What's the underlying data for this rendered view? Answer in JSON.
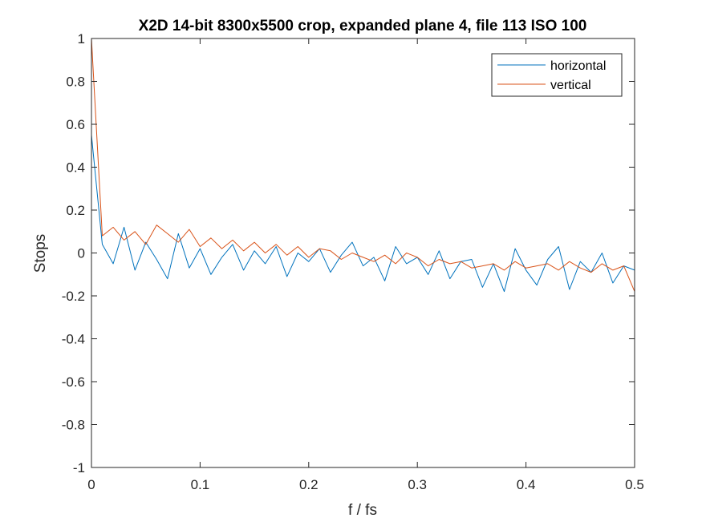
{
  "chart_data": {
    "type": "line",
    "title": "X2D 14-bit 8300x5500 crop, expanded plane 4, file 113 ISO 100",
    "xlabel": "f / fs",
    "ylabel": "Stops",
    "xlim": [
      0,
      0.5
    ],
    "ylim": [
      -1,
      1
    ],
    "x_ticks": [
      0,
      0.1,
      0.2,
      0.3,
      0.4,
      0.5
    ],
    "y_ticks": [
      -1,
      -0.8,
      -0.6,
      -0.4,
      -0.2,
      0,
      0.2,
      0.4,
      0.6,
      0.8,
      1
    ],
    "x_tick_labels": [
      "0",
      "0.1",
      "0.2",
      "0.3",
      "0.4",
      "0.5"
    ],
    "y_tick_labels": [
      "-1",
      "-0.8",
      "-0.6",
      "-0.4",
      "-0.2",
      "0",
      "0.2",
      "0.4",
      "0.6",
      "0.8",
      "1"
    ],
    "grid": false,
    "legend_position": "top-right",
    "series": [
      {
        "name": "horizontal",
        "color": "#0072BD",
        "x": [
          0,
          0.01,
          0.02,
          0.03,
          0.04,
          0.05,
          0.06,
          0.07,
          0.08,
          0.09,
          0.1,
          0.11,
          0.12,
          0.13,
          0.14,
          0.15,
          0.16,
          0.17,
          0.18,
          0.19,
          0.2,
          0.21,
          0.22,
          0.23,
          0.24,
          0.25,
          0.26,
          0.27,
          0.28,
          0.29,
          0.3,
          0.31,
          0.32,
          0.33,
          0.34,
          0.35,
          0.36,
          0.37,
          0.38,
          0.39,
          0.4,
          0.41,
          0.42,
          0.43,
          0.44,
          0.45,
          0.46,
          0.47,
          0.48,
          0.49,
          0.5
        ],
        "y": [
          0.55,
          0.04,
          -0.05,
          0.12,
          -0.08,
          0.05,
          -0.03,
          -0.12,
          0.09,
          -0.07,
          0.02,
          -0.1,
          -0.02,
          0.04,
          -0.08,
          0.01,
          -0.05,
          0.03,
          -0.11,
          0.0,
          -0.04,
          0.02,
          -0.09,
          -0.01,
          0.05,
          -0.06,
          -0.02,
          -0.13,
          0.03,
          -0.05,
          -0.02,
          -0.1,
          0.01,
          -0.12,
          -0.04,
          -0.03,
          -0.16,
          -0.05,
          -0.18,
          0.02,
          -0.08,
          -0.15,
          -0.03,
          0.03,
          -0.17,
          -0.04,
          -0.09,
          0.0,
          -0.14,
          -0.06,
          -0.08
        ]
      },
      {
        "name": "vertical",
        "color": "#D95319",
        "x": [
          0,
          0.01,
          0.02,
          0.03,
          0.04,
          0.05,
          0.06,
          0.07,
          0.08,
          0.09,
          0.1,
          0.11,
          0.12,
          0.13,
          0.14,
          0.15,
          0.16,
          0.17,
          0.18,
          0.19,
          0.2,
          0.21,
          0.22,
          0.23,
          0.24,
          0.25,
          0.26,
          0.27,
          0.28,
          0.29,
          0.3,
          0.31,
          0.32,
          0.33,
          0.34,
          0.35,
          0.36,
          0.37,
          0.38,
          0.39,
          0.4,
          0.41,
          0.42,
          0.43,
          0.44,
          0.45,
          0.46,
          0.47,
          0.48,
          0.49,
          0.5
        ],
        "y": [
          1.0,
          0.08,
          0.12,
          0.06,
          0.1,
          0.04,
          0.13,
          0.09,
          0.05,
          0.11,
          0.03,
          0.07,
          0.02,
          0.06,
          0.01,
          0.05,
          0.0,
          0.04,
          -0.01,
          0.03,
          -0.02,
          0.02,
          0.01,
          -0.03,
          0.0,
          -0.02,
          -0.04,
          -0.01,
          -0.05,
          0.0,
          -0.02,
          -0.06,
          -0.03,
          -0.05,
          -0.04,
          -0.07,
          -0.06,
          -0.05,
          -0.08,
          -0.04,
          -0.07,
          -0.06,
          -0.05,
          -0.08,
          -0.04,
          -0.07,
          -0.09,
          -0.05,
          -0.08,
          -0.06,
          -0.18
        ]
      }
    ]
  }
}
